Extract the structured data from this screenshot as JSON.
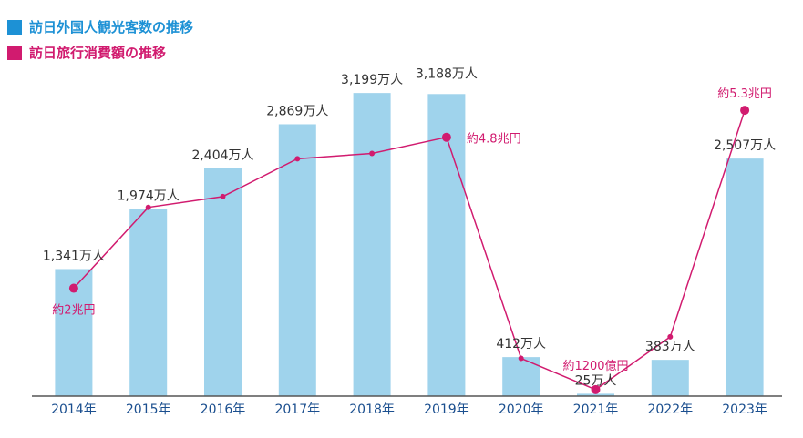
{
  "colors": {
    "bar": "#9fd3ec",
    "line": "#d11b6f",
    "text": "#333333",
    "axis": "#555555",
    "xtick": "#1b4f8f",
    "legend_visitors": "#1d91d5",
    "legend_spending": "#d11b6f"
  },
  "legend": {
    "visitors_label": "訪日外国人観光客数の推移",
    "spending_label": "訪日旅行消費額の推移"
  },
  "chart_data": {
    "type": "bar",
    "title": "",
    "xlabel": "",
    "ylabel": "",
    "categories": [
      "2014年",
      "2015年",
      "2016年",
      "2017年",
      "2018年",
      "2019年",
      "2020年",
      "2021年",
      "2022年",
      "2023年"
    ],
    "grid": false,
    "legend_position": "top-left",
    "series": [
      {
        "name": "訪日外国人観光客数の推移",
        "type": "bar",
        "unit": "万人",
        "values": [
          1341,
          1974,
          2404,
          2869,
          3199,
          3188,
          412,
          25,
          383,
          2507
        ],
        "labels": [
          "1,341万人",
          "1,974万人",
          "2,404万人",
          "2,869万人",
          "3,199万人",
          "3,188万人",
          "412万人",
          "25万人",
          "383万人",
          "2,507万人"
        ],
        "ylim": [
          0,
          3700
        ]
      },
      {
        "name": "訪日旅行消費額の推移",
        "type": "line",
        "unit": "兆円",
        "values": [
          2.0,
          3.5,
          3.7,
          4.4,
          4.5,
          4.8,
          0.7,
          0.12,
          1.1,
          5.3
        ],
        "ylim": [
          0,
          6.5
        ],
        "point_labels": [
          {
            "index": 0,
            "text": "約2兆円"
          },
          {
            "index": 5,
            "text": "約4.8兆円"
          },
          {
            "index": 7,
            "text": "約1200億円"
          },
          {
            "index": 9,
            "text": "約5.3兆円"
          }
        ]
      }
    ]
  }
}
